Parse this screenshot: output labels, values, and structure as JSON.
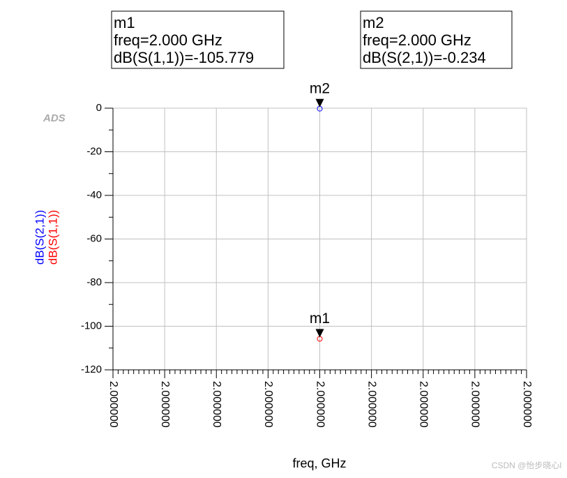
{
  "chart_data": {
    "type": "scatter",
    "logo": "ADS",
    "xlabel": "freq, GHz",
    "xlim": [
      1.9999996,
      2.0000004
    ],
    "xticks": [
      {
        "value": 1.9999996,
        "label": "2.000000"
      },
      {
        "value": 1.9999997,
        "label": "2.000000"
      },
      {
        "value": 1.9999998,
        "label": "2.000000"
      },
      {
        "value": 1.9999999,
        "label": "2.000000"
      },
      {
        "value": 2.0,
        "label": "2.000000"
      },
      {
        "value": 2.0000001,
        "label": "2.000000"
      },
      {
        "value": 2.0000002,
        "label": "2.000000"
      },
      {
        "value": 2.0000003,
        "label": "2.000000"
      },
      {
        "value": 2.0000004,
        "label": "2.000000"
      }
    ],
    "ylim": [
      -120,
      0
    ],
    "yticks": [
      0,
      -20,
      -40,
      -60,
      -80,
      -100,
      -120
    ],
    "grid": true,
    "series": [
      {
        "name": "dB(S(2,1))",
        "color": "#0000ff",
        "x": [
          2.0
        ],
        "values": [
          -0.234
        ]
      },
      {
        "name": "dB(S(1,1))",
        "color": "#ff0000",
        "x": [
          2.0
        ],
        "values": [
          -105.779
        ]
      }
    ],
    "markers": [
      {
        "name": "m1",
        "series": 1,
        "lines": [
          "freq=2.000 GHz",
          "dB(S(1,1))=-105.779"
        ]
      },
      {
        "name": "m2",
        "series": 0,
        "lines": [
          "freq=2.000 GHz",
          "dB(S(2,1))=-0.234"
        ]
      }
    ],
    "watermark": "CSDN @怡步晓心l"
  }
}
